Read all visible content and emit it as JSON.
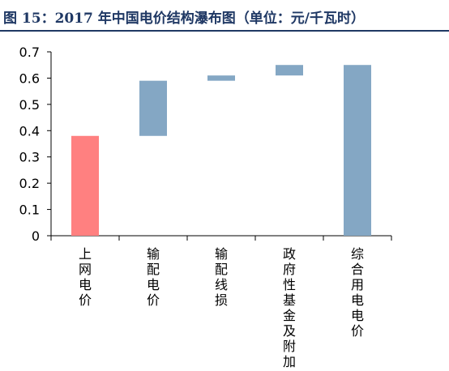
{
  "header": {
    "title": "图 15：2017 年中国电价结构瀑布图（单位：元/千瓦时）"
  },
  "chart_data": {
    "type": "bar",
    "subtype": "waterfall",
    "title": "图 15：2017 年中国电价结构瀑布图（单位：元/千瓦时）",
    "categories": [
      "上网电价",
      "输配电价",
      "输配线损",
      "政府性基金及附加",
      "综合用电电价"
    ],
    "series": [
      {
        "bars": [
          {
            "bottom": 0,
            "top": 0.38,
            "color": "#ff8080"
          },
          {
            "bottom": 0.38,
            "top": 0.59,
            "color": "#84a7c4"
          },
          {
            "bottom": 0.59,
            "top": 0.61,
            "color": "#84a7c4"
          },
          {
            "bottom": 0.61,
            "top": 0.65,
            "color": "#84a7c4"
          },
          {
            "bottom": 0,
            "top": 0.65,
            "color": "#84a7c4"
          }
        ]
      }
    ],
    "ylim": [
      0,
      0.7
    ],
    "yticks": [
      "0",
      "0.1",
      "0.2",
      "0.3",
      "0.4",
      "0.5",
      "0.6",
      "0.7"
    ],
    "ytick_values": [
      0,
      0.1,
      0.2,
      0.3,
      0.4,
      0.5,
      0.6,
      0.7
    ],
    "grid": false,
    "xlabel": "",
    "ylabel": ""
  }
}
